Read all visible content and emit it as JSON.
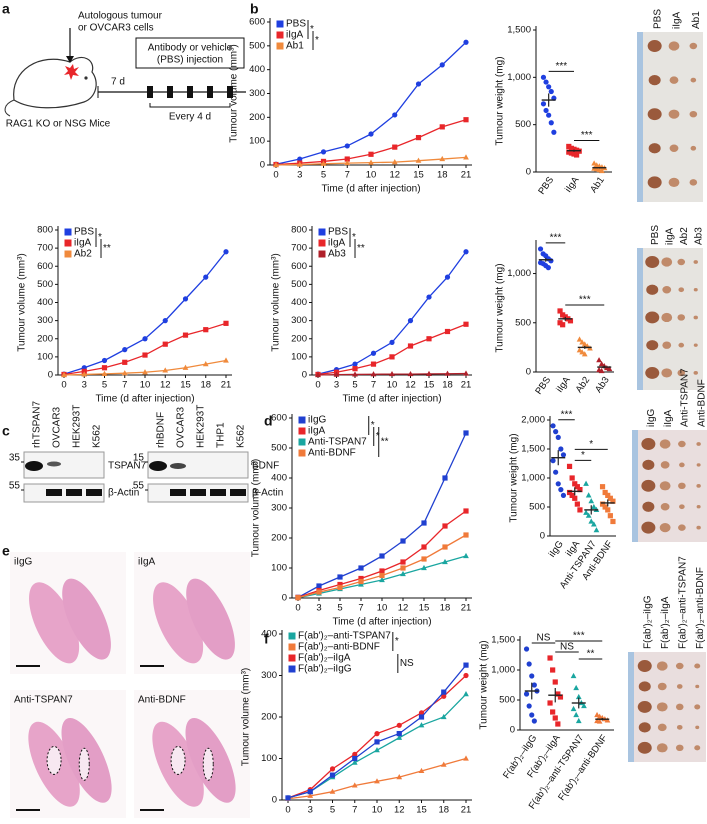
{
  "panel_labels": [
    "a",
    "b",
    "c",
    "d",
    "e",
    "f"
  ],
  "schematic": {
    "cells_label": [
      "Autologous tumour",
      "or OVCAR3 cells"
    ],
    "delay": "7 d",
    "injection_label": [
      "Antibody or vehicle",
      "(PBS) injection"
    ],
    "interval": "Every 4 d",
    "mouse_label": "RAG1 KO or NSG Mice"
  },
  "blots": [
    {
      "lanes": [
        "rhTSPAN7",
        "OVCAR3",
        "HEK293T",
        "K562"
      ],
      "markers": [
        "35",
        "55"
      ],
      "proteins": [
        "TSPAN7",
        "β-Actin"
      ]
    },
    {
      "lanes": [
        "rhBDNF",
        "OVCAR3",
        "HEK293T",
        "THP1",
        "K562"
      ],
      "markers": [
        "15",
        "55"
      ],
      "proteins": [
        "BDNF",
        "β-Actin"
      ]
    }
  ],
  "histology": [
    "iIgG",
    "iIgA",
    "Anti-TSPAN7",
    "Anti-BDNF"
  ],
  "photos": [
    [
      "PBS",
      "iIgA",
      "Ab1"
    ],
    [
      "PBS",
      "iIgA",
      "Ab2",
      "Ab3"
    ],
    [
      "iIgG",
      "iIgA",
      "Anti-TSPAN7",
      "Anti-BDNF"
    ],
    [
      "F(ab′)₂–iIgG",
      "F(ab′)₂–iIgA",
      "F(ab′)₂–anti-TSPAN7",
      "F(ab′)₂–anti-BDNF"
    ]
  ],
  "chart_data": [
    {
      "type": "line",
      "x_label": "Time (d after injection)",
      "y_label": "Tumour volume (mm³)",
      "categories": [
        "0",
        "3",
        "5",
        "7",
        "10",
        "12",
        "15",
        "18",
        "21"
      ],
      "ylim": [
        0,
        600
      ],
      "yticks": [
        0,
        100,
        200,
        300,
        400,
        500,
        600
      ],
      "series": [
        {
          "name": "PBS",
          "color": "#1f3fe0",
          "marker": "circle",
          "values": [
            3,
            25,
            55,
            80,
            130,
            210,
            340,
            420,
            515
          ]
        },
        {
          "name": "iIgA",
          "color": "#e8262a",
          "marker": "square",
          "values": [
            2,
            8,
            15,
            25,
            45,
            75,
            115,
            160,
            190
          ]
        },
        {
          "name": "Ab1",
          "color": "#f08a3c",
          "marker": "triangle",
          "values": [
            0,
            2,
            5,
            8,
            10,
            12,
            18,
            25,
            32
          ]
        }
      ],
      "significance": [
        {
          "label": "*",
          "between": [
            "PBS",
            "iIgA"
          ]
        },
        {
          "label": "*",
          "between": [
            "iIgA",
            "Ab1"
          ]
        }
      ]
    },
    {
      "type": "dot",
      "y_label": "Tumour weight (mg)",
      "categories": [
        "PBS",
        "iIgA",
        "Ab1"
      ],
      "ylim": [
        0,
        1500
      ],
      "yticks": [
        0,
        500,
        {
          "value": 1000,
          "label": "1,000"
        },
        {
          "value": 1500,
          "label": "1,500"
        }
      ],
      "colors": [
        "#1f3fe0",
        "#e8262a",
        "#f08a3c"
      ],
      "markers": [
        "circle",
        "square",
        "triangle"
      ],
      "values": [
        [
          1000,
          950,
          900,
          850,
          780,
          720,
          650,
          600,
          520,
          420
        ],
        [
          270,
          250,
          240,
          230,
          220,
          210,
          200,
          190,
          180
        ],
        [
          90,
          70,
          60,
          50,
          40,
          35,
          30,
          20,
          10
        ]
      ],
      "means": [
        760,
        225,
        45
      ],
      "sem": [
        70,
        12,
        8
      ],
      "significance": [
        {
          "label": "***",
          "between": [
            "PBS",
            "iIgA"
          ]
        },
        {
          "label": "***",
          "between": [
            "iIgA",
            "Ab1"
          ]
        }
      ]
    },
    {
      "type": "line",
      "x_label": "Time (d after injection)",
      "y_label": "Tumour volume (mm³)",
      "categories": [
        "0",
        "3",
        "5",
        "7",
        "10",
        "12",
        "15",
        "18",
        "21"
      ],
      "ylim": [
        0,
        800
      ],
      "yticks": [
        0,
        100,
        200,
        300,
        400,
        500,
        600,
        700,
        800
      ],
      "series": [
        {
          "name": "PBS",
          "color": "#1f3fe0",
          "marker": "circle",
          "values": [
            5,
            40,
            80,
            140,
            200,
            300,
            420,
            540,
            680
          ]
        },
        {
          "name": "iIgA",
          "color": "#e8262a",
          "marker": "square",
          "values": [
            3,
            20,
            40,
            70,
            110,
            170,
            220,
            250,
            285
          ]
        },
        {
          "name": "Ab2",
          "color": "#f08a3c",
          "marker": "triangle",
          "values": [
            0,
            3,
            6,
            10,
            15,
            25,
            40,
            60,
            80
          ]
        }
      ],
      "significance": [
        {
          "label": "*",
          "between": [
            "PBS",
            "iIgA"
          ]
        },
        {
          "label": "**",
          "between": [
            "iIgA",
            "Ab2"
          ]
        }
      ]
    },
    {
      "type": "line",
      "x_label": "Time (d after injection)",
      "y_label": "Tumour volume (mm³)",
      "categories": [
        "0",
        "3",
        "5",
        "7",
        "10",
        "12",
        "15",
        "18",
        "21"
      ],
      "ylim": [
        0,
        800
      ],
      "yticks": [
        0,
        100,
        200,
        300,
        400,
        500,
        600,
        700,
        800
      ],
      "series": [
        {
          "name": "PBS",
          "color": "#1f3fe0",
          "marker": "circle",
          "values": [
            5,
            30,
            60,
            120,
            180,
            300,
            430,
            540,
            680
          ]
        },
        {
          "name": "iIgA",
          "color": "#e8262a",
          "marker": "square",
          "values": [
            3,
            15,
            35,
            60,
            100,
            160,
            200,
            240,
            280
          ]
        },
        {
          "name": "Ab3",
          "color": "#b0202a",
          "marker": "triangle",
          "values": [
            0,
            2,
            3,
            4,
            5,
            5,
            6,
            7,
            8
          ]
        }
      ],
      "significance": [
        {
          "label": "*",
          "between": [
            "PBS",
            "iIgA"
          ]
        },
        {
          "label": "**",
          "between": [
            "iIgA",
            "Ab3"
          ]
        }
      ]
    },
    {
      "type": "dot",
      "y_label": "Tumour weight (mg)",
      "categories": [
        "PBS",
        "iIgA",
        "Ab2",
        "Ab3"
      ],
      "ylim": [
        0,
        1300
      ],
      "yticks": [
        0,
        500,
        {
          "value": 1000,
          "label": "1,000"
        }
      ],
      "colors": [
        "#1f3fe0",
        "#e8262a",
        "#f08a3c",
        "#b0202a"
      ],
      "markers": [
        "circle",
        "square",
        "triangle",
        "triangle"
      ],
      "values": [
        [
          1250,
          1200,
          1180,
          1150,
          1130,
          1110,
          1100,
          1080,
          1060
        ],
        [
          620,
          580,
          560,
          540,
          520,
          500,
          480
        ],
        [
          330,
          300,
          280,
          260,
          240,
          220,
          200,
          180
        ],
        [
          120,
          80,
          60,
          40,
          30,
          20,
          10
        ]
      ],
      "means": [
        1140,
        540,
        250,
        50
      ],
      "sem": [
        20,
        20,
        15,
        15
      ],
      "significance": [
        {
          "label": "***",
          "between": [
            "PBS",
            "iIgA"
          ]
        },
        {
          "label": "***",
          "between": [
            "iIgA",
            "Ab3"
          ]
        }
      ]
    },
    {
      "type": "line",
      "x_label": "Time (d after injection)",
      "y_label": "Tumour volume (mm³)",
      "categories": [
        "0",
        "3",
        "5",
        "7",
        "10",
        "12",
        "15",
        "18",
        "21"
      ],
      "ylim": [
        0,
        600
      ],
      "yticks": [
        0,
        100,
        200,
        300,
        400,
        500,
        600
      ],
      "series": [
        {
          "name": "iIgG",
          "color": "#2040d0",
          "marker": "square",
          "values": [
            2,
            40,
            70,
            100,
            140,
            190,
            250,
            400,
            550
          ]
        },
        {
          "name": "iIgA",
          "color": "#e8262a",
          "marker": "square",
          "values": [
            2,
            25,
            45,
            65,
            90,
            120,
            170,
            240,
            290
          ]
        },
        {
          "name": "Anti-TSPAN7",
          "color": "#1aa6a0",
          "marker": "triangle",
          "values": [
            1,
            15,
            30,
            45,
            60,
            80,
            100,
            120,
            140
          ]
        },
        {
          "name": "Anti-BDNF",
          "color": "#f07a3a",
          "marker": "square",
          "values": [
            1,
            20,
            35,
            55,
            75,
            100,
            130,
            170,
            210
          ]
        }
      ],
      "significance": [
        {
          "label": "*",
          "between": [
            "iIgG",
            "iIgA"
          ]
        },
        {
          "label": "*",
          "between": [
            "iIgA",
            "Anti-TSPAN7"
          ]
        },
        {
          "label": "**",
          "between": [
            "iIgA",
            "Anti-BDNF"
          ]
        }
      ]
    },
    {
      "type": "dot",
      "y_label": "Tumour weight (mg)",
      "categories": [
        "iIgG",
        "iIgA",
        "Anti-TSPAN7",
        "Anti-BDNF"
      ],
      "ylim": [
        0,
        2000
      ],
      "yticks": [
        0,
        500,
        {
          "value": 1000,
          "label": "1,000"
        },
        {
          "value": 1500,
          "label": "1,500"
        },
        {
          "value": 2000,
          "label": "2,000"
        }
      ],
      "colors": [
        "#2040d0",
        "#e8262a",
        "#1aa6a0",
        "#f07a3a"
      ],
      "markers": [
        "circle",
        "square",
        "triangle",
        "square"
      ],
      "values": [
        [
          1900,
          1800,
          1700,
          1500,
          1400,
          1300,
          1100,
          900,
          800,
          700
        ],
        [
          1200,
          1000,
          900,
          850,
          800,
          750,
          700,
          650,
          550,
          450
        ],
        [
          900,
          700,
          600,
          500,
          450,
          400,
          350,
          250,
          200,
          100
        ],
        [
          850,
          750,
          700,
          650,
          600,
          550,
          500,
          450,
          350,
          250
        ]
      ],
      "means": [
        1350,
        770,
        450,
        570
      ],
      "sem": [
        130,
        70,
        80,
        60
      ],
      "significance": [
        {
          "label": "***",
          "between": [
            "iIgG",
            "iIgA"
          ]
        },
        {
          "label": "*",
          "between": [
            "iIgA",
            "Anti-TSPAN7"
          ]
        },
        {
          "label": "*",
          "between": [
            "iIgA",
            "Anti-BDNF"
          ]
        }
      ]
    },
    {
      "type": "line",
      "y_label": "Tumour volume (mm³)",
      "categories": [
        "0",
        "3",
        "5",
        "7",
        "10",
        "12",
        "15",
        "18",
        "21"
      ],
      "ylim": [
        0,
        400
      ],
      "yticks": [
        0,
        100,
        200,
        300,
        400
      ],
      "series": [
        {
          "name": "F(ab′)₂–anti-TSPAN7",
          "color": "#1aa6a0",
          "marker": "triangle",
          "values": [
            5,
            20,
            55,
            90,
            120,
            150,
            180,
            200,
            255
          ]
        },
        {
          "name": "F(ab′)₂–anti-BDNF",
          "color": "#f07a3a",
          "marker": "triangle",
          "values": [
            3,
            10,
            20,
            35,
            45,
            55,
            70,
            85,
            100
          ]
        },
        {
          "name": "F(ab′)₂–iIgA",
          "color": "#e8262a",
          "marker": "circle",
          "values": [
            5,
            25,
            75,
            110,
            160,
            180,
            210,
            250,
            300
          ]
        },
        {
          "name": "F(ab′)₂–iIgG",
          "color": "#2040d0",
          "marker": "square",
          "values": [
            5,
            20,
            60,
            100,
            140,
            160,
            200,
            260,
            325
          ]
        }
      ],
      "significance": [
        {
          "label": "*",
          "between": [
            "F(ab′)₂–anti-TSPAN7",
            "F(ab′)₂–anti-BDNF"
          ]
        },
        {
          "label": "NS",
          "between": [
            "F(ab′)₂–iIgA",
            "F(ab′)₂–iIgG"
          ]
        }
      ]
    },
    {
      "type": "dot",
      "y_label": "Tumour weight (mg)",
      "categories": [
        "F(ab′)₂–iIgG",
        "F(ab′)₂–iIgA",
        "F(ab′)₂–anti-TSPAN7",
        "F(ab′)₂–anti-BDNF"
      ],
      "ylim": [
        0,
        1500
      ],
      "yticks": [
        0,
        500,
        {
          "value": 1000,
          "label": "1,000"
        },
        {
          "value": 1500,
          "label": "1,500"
        }
      ],
      "colors": [
        "#2040d0",
        "#e8262a",
        "#1aa6a0",
        "#f07a3a"
      ],
      "markers": [
        "circle",
        "square",
        "triangle",
        "triangle"
      ],
      "values": [
        [
          1350,
          1100,
          900,
          750,
          650,
          600,
          400,
          250,
          150
        ],
        [
          1200,
          1000,
          800,
          600,
          550,
          450,
          300,
          200,
          100
        ],
        [
          900,
          700,
          550,
          450,
          400,
          350,
          250,
          150
        ],
        [
          250,
          220,
          200,
          180,
          160,
          150,
          140
        ]
      ],
      "means": [
        650,
        580,
        450,
        180
      ],
      "sem": [
        140,
        120,
        90,
        20
      ],
      "significance": [
        {
          "label": "NS",
          "between": [
            "F(ab′)₂–iIgG",
            "F(ab′)₂–iIgA"
          ]
        },
        {
          "label": "NS",
          "between": [
            "F(ab′)₂–iIgA",
            "F(ab′)₂–anti-TSPAN7"
          ]
        },
        {
          "label": "***",
          "between": [
            "F(ab′)₂–iIgA",
            "F(ab′)₂–anti-BDNF"
          ]
        },
        {
          "label": "**",
          "between": [
            "F(ab′)₂–anti-TSPAN7",
            "F(ab′)₂–anti-BDNF"
          ]
        }
      ]
    }
  ]
}
